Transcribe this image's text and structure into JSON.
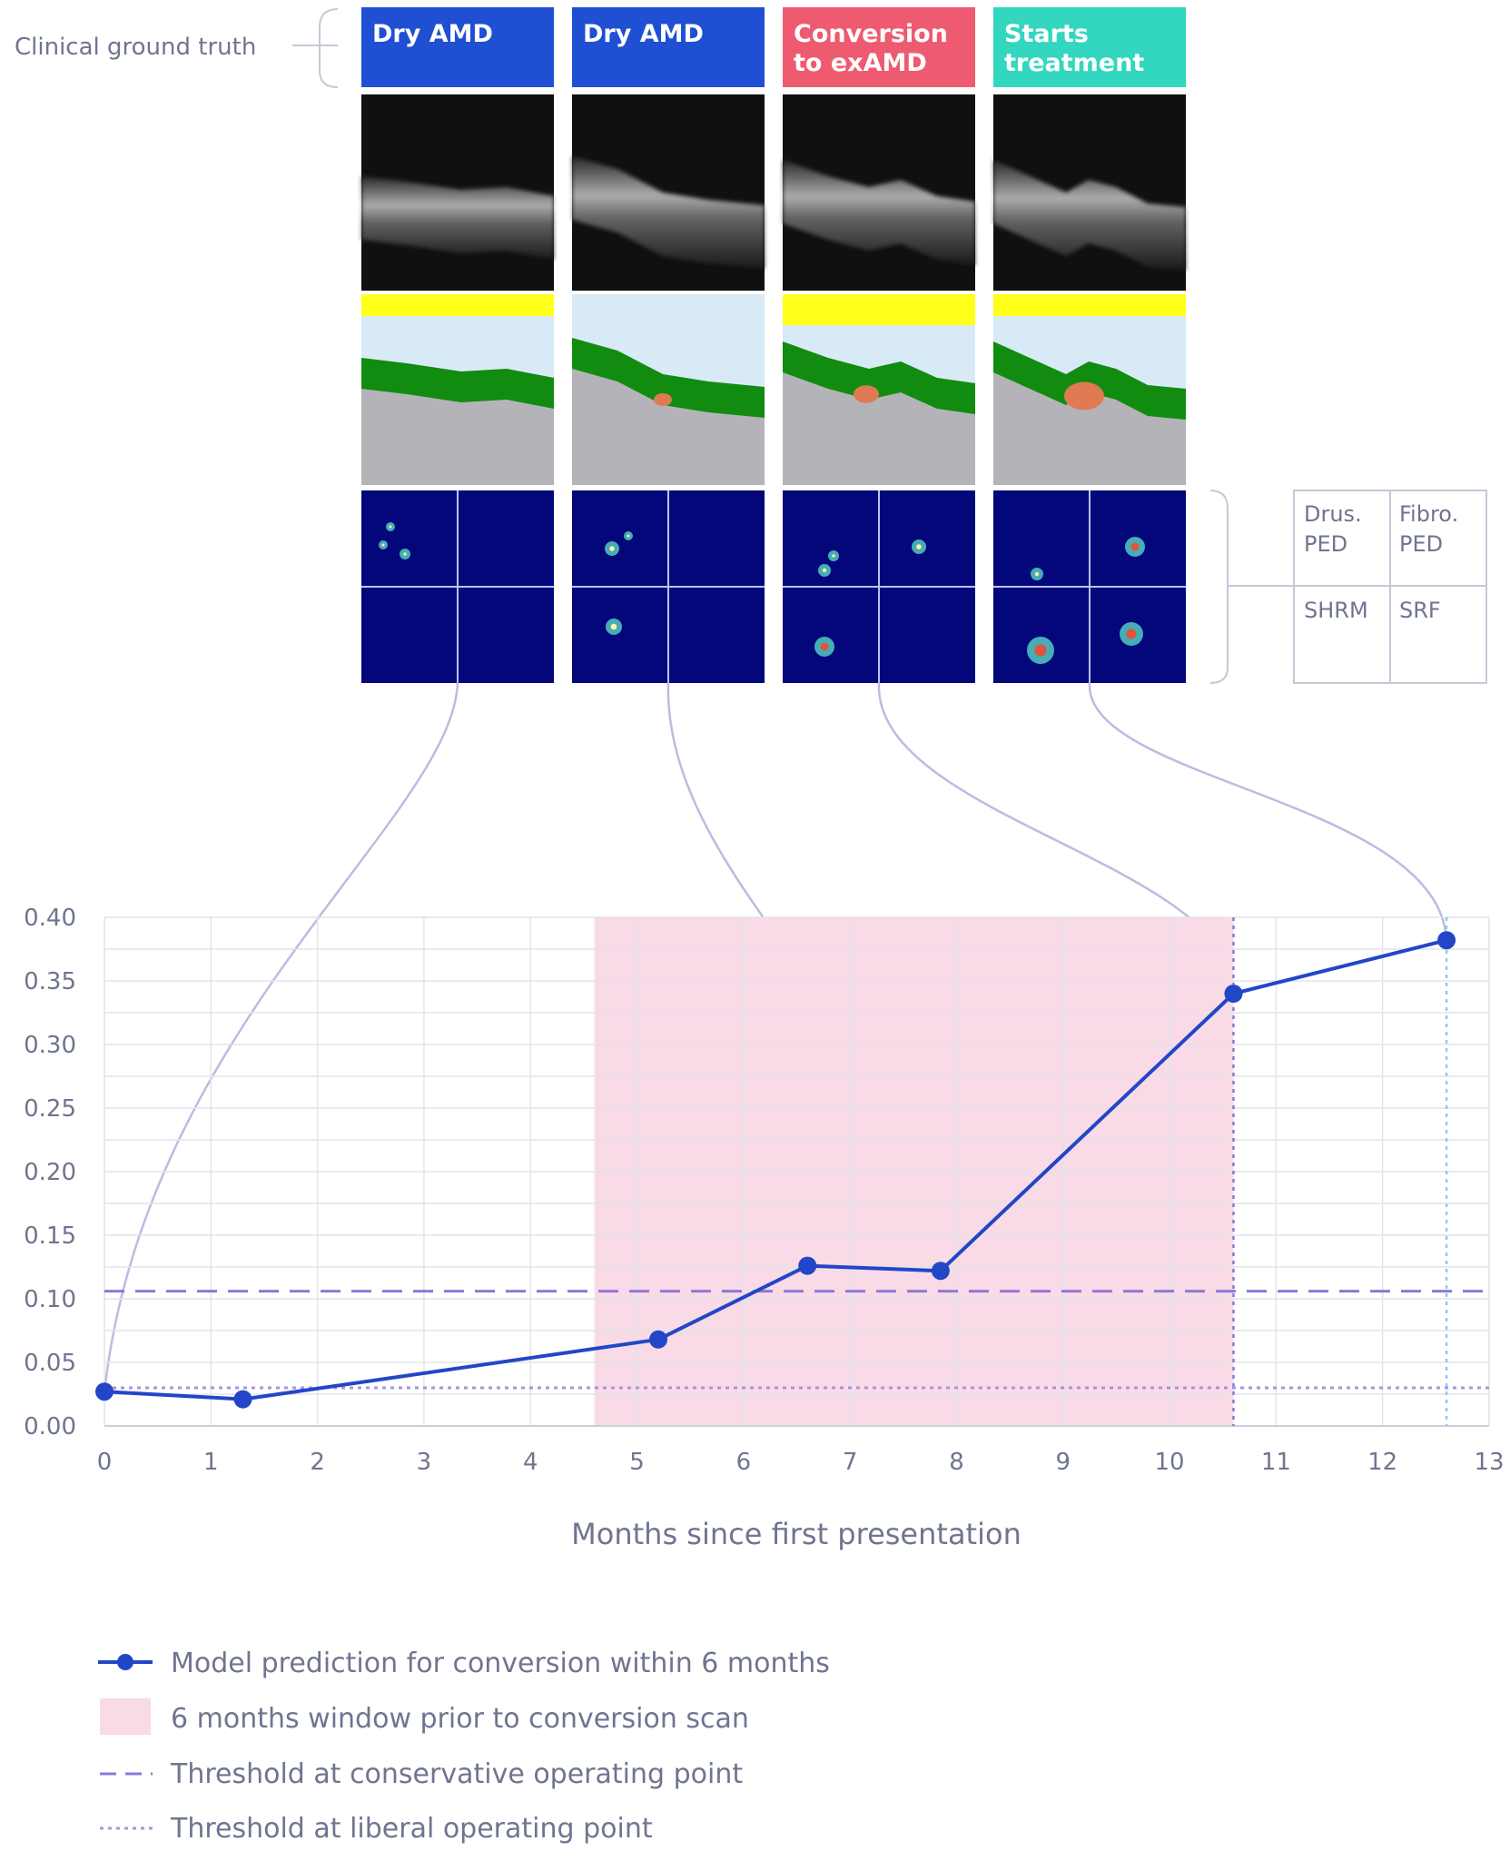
{
  "ground_truth": {
    "label": "Clinical ground truth",
    "stages": [
      {
        "label": "Dry AMD",
        "color": "#1f4fd3"
      },
      {
        "label": "Dry AMD",
        "color": "#1f4fd3"
      },
      {
        "label": "Conversion to exAMD",
        "color": "#ee5a6f"
      },
      {
        "label": "Starts treatment",
        "color": "#33d6bf"
      }
    ]
  },
  "feature_legend": {
    "cells": [
      "Drus. PED",
      "Fibro. PED",
      "SHRM",
      "SRF"
    ]
  },
  "colors": {
    "series": "#2346c8",
    "window": "#f8dbe6",
    "conservative": "#8d78d8",
    "liberal": "#a693e3",
    "connector": "#b9bde0",
    "treat_marker": "#86cfe8",
    "oct_bg": "#101010",
    "seg_fluid": "#d9eaf7",
    "seg_retina": "#118c10",
    "seg_choroid": "#b4b4b8",
    "seg_yellow": "#ffff1a",
    "heat_bg": "#03077a"
  },
  "chart_data": {
    "type": "line",
    "xlabel": "Months since first presentation",
    "xlim": [
      0,
      13
    ],
    "ylim": [
      0,
      0.4
    ],
    "xticks": [
      0,
      1,
      2,
      3,
      4,
      5,
      6,
      7,
      8,
      9,
      10,
      11,
      12,
      13
    ],
    "yticks": [
      "0.00",
      "0.05",
      "0.10",
      "0.15",
      "0.20",
      "0.25",
      "0.30",
      "0.35",
      "0.40"
    ],
    "grid": true,
    "series": [
      {
        "name": "Model prediction for conversion within 6 months",
        "x": [
          0,
          1.3,
          5.2,
          6.6,
          7.85,
          10.6,
          12.6
        ],
        "y": [
          0.027,
          0.021,
          0.068,
          0.126,
          0.122,
          0.34,
          0.382
        ]
      }
    ],
    "window": {
      "x0": 4.6,
      "x1": 10.6,
      "label": "6 months window prior to conversion scan"
    },
    "thresholds": [
      {
        "name": "Threshold at conservative operating point",
        "y": 0.106,
        "style": "dashed"
      },
      {
        "name": "Threshold at liberal operating point",
        "y": 0.03,
        "style": "dotted"
      }
    ],
    "markers": [
      {
        "x": 10.6,
        "style": "dotted"
      },
      {
        "x": 12.6,
        "style": "dotted"
      }
    ],
    "connections": [
      {
        "panel": 0,
        "point": 0
      },
      {
        "panel": 1,
        "point": 4
      },
      {
        "panel": 2,
        "point": 5
      },
      {
        "panel": 3,
        "point": 6
      }
    ],
    "legend_position": "bottom-left"
  }
}
